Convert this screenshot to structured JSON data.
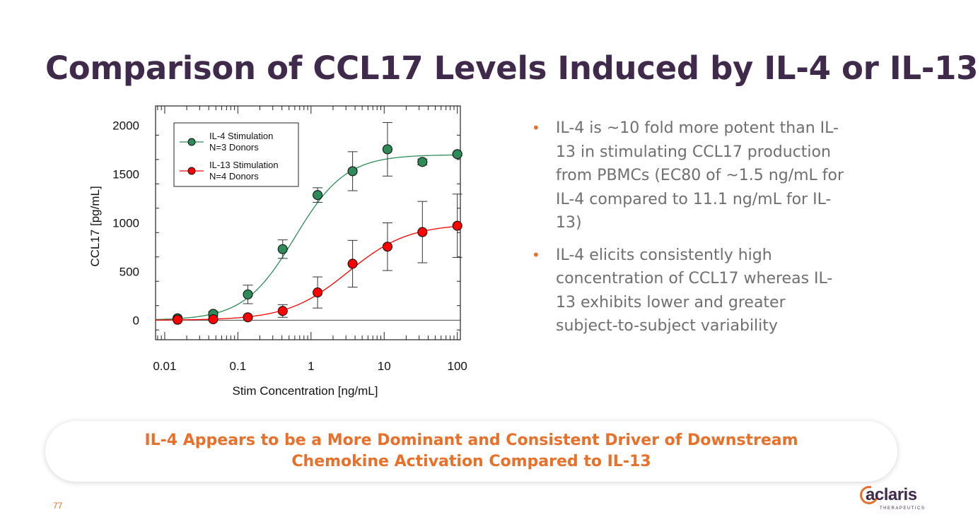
{
  "slide": {
    "title": "Comparison of CCL17 Levels Induced by IL-4 or IL-13",
    "bullets": [
      "IL-4 is ~10 fold more potent than IL-13 in stimulating CCL17 production from PBMCs (EC80 of ~1.5 ng/mL for IL-4 compared to 11.1 ng/mL for IL-13)",
      "IL-4 elicits consistently high concentration of CCL17 whereas IL-13 exhibits lower and greater subject-to-subject variability"
    ],
    "callout_line1": "IL-4 Appears to be a More Dominant and Consistent Driver of Downstream",
    "callout_line2": "Chemokine Activation Compared to IL-13",
    "page_number": "77",
    "logo_text": "aclaris",
    "logo_subtext": "THERAPEUTICS"
  },
  "colors": {
    "title": "#3f2a4b",
    "accent": "#e8702a",
    "il4": "#2e8b57",
    "il13": "#ff0000"
  },
  "chart_data": {
    "type": "scatter",
    "xscale": "log",
    "xlabel": "Stim Concentration [ng/mL]",
    "ylabel": "CCL17 [pg/mL]",
    "xlim": [
      0.0075,
      110
    ],
    "ylim": [
      -200,
      2200
    ],
    "xticks": [
      0.01,
      0.1,
      1,
      10,
      100
    ],
    "xtick_labels": [
      "0.01",
      "0.1",
      "1",
      "10",
      "100"
    ],
    "yticks": [
      0,
      500,
      1000,
      1500,
      2000
    ],
    "ytick_labels": [
      "0",
      "500",
      "1000",
      "1500",
      "2000"
    ],
    "legend_position": "top-left",
    "series": [
      {
        "name": "IL-4 Stimulation",
        "sublabel": "N=3 Donors",
        "color": "#2e8b57",
        "x": [
          0.015,
          0.046,
          0.137,
          0.41,
          1.23,
          3.7,
          11.1,
          33.3,
          100
        ],
        "y": [
          20,
          65,
          265,
          730,
          1285,
          1530,
          1755,
          1625,
          1705
        ],
        "err": [
          10,
          25,
          95,
          95,
          75,
          200,
          275,
          30,
          15
        ],
        "fit": {
          "bottom": 0,
          "top": 1700,
          "ec50": 0.6,
          "hill": 1.25
        }
      },
      {
        "name": "IL-13 Stimulation",
        "sublabel": "N=4 Donors",
        "color": "#ff0000",
        "x": [
          0.015,
          0.046,
          0.137,
          0.41,
          1.23,
          3.7,
          11.1,
          33.3,
          100
        ],
        "y": [
          5,
          10,
          30,
          95,
          285,
          580,
          755,
          905,
          970
        ],
        "err": [
          5,
          5,
          10,
          65,
          160,
          240,
          245,
          315,
          325
        ],
        "fit": {
          "bottom": 0,
          "top": 990,
          "ec50": 3.2,
          "hill": 1.05
        }
      }
    ]
  }
}
